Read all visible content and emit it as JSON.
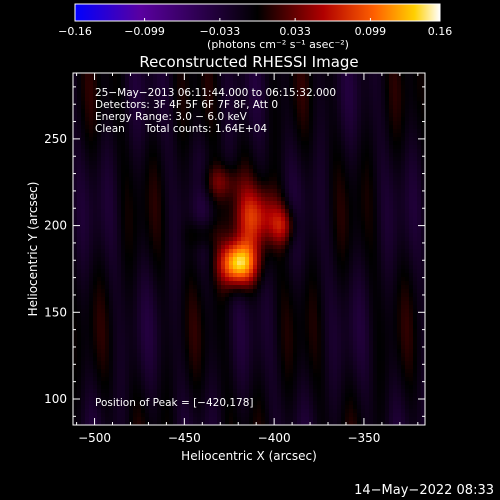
{
  "chart_data": {
    "type": "heatmap",
    "title": "Reconstructed RHESSI Image",
    "xlabel": "Heliocentric X (arcsec)",
    "ylabel": "Heliocentric Y (arcsec)",
    "xlim": [
      -512,
      -316
    ],
    "ylim": [
      85,
      288
    ],
    "xticks": [
      "−500",
      "−450",
      "−400",
      "−350"
    ],
    "xtick_values": [
      -500,
      -450,
      -400,
      -350
    ],
    "yticks": [
      "100",
      "150",
      "200",
      "250"
    ],
    "ytick_values": [
      100,
      150,
      200,
      250
    ],
    "colorbar": {
      "min": -0.16,
      "max": 0.16,
      "ticks": [
        "−0.16",
        "−0.099",
        "−0.033",
        "0.033",
        "0.099",
        "0.16"
      ],
      "tick_values": [
        -0.16,
        -0.099,
        -0.033,
        0.033,
        0.099,
        0.16
      ],
      "unit_label": "(photons cm⁻² s⁻¹ asec⁻²)",
      "colors": [
        "#0000ff",
        "#5a00a0",
        "#000000",
        "#b00000",
        "#ff6000",
        "#ffd000",
        "#ffffff"
      ]
    },
    "annotations": {
      "line1": "25−May−2013 06:11:44.000 to 06:15:32.000",
      "line2": "Detectors: 3F 4F 5F 6F 7F 8F, Att 0",
      "line3": "Energy Range: 3.0 − 6.0 keV",
      "line4_left": "Clean",
      "line4_right": "Total counts: 1.64E+04",
      "peak": "Position of Peak = [−420,178]"
    },
    "peak": {
      "x": -420,
      "y": 178,
      "value": 0.16
    },
    "sources": [
      {
        "x": -420,
        "y": 178,
        "amp": 0.16,
        "sx": 7,
        "sy": 9
      },
      {
        "x": -410,
        "y": 205,
        "amp": 0.075,
        "sx": 9,
        "sy": 12
      },
      {
        "x": -395,
        "y": 200,
        "amp": 0.06,
        "sx": 5,
        "sy": 8
      },
      {
        "x": -430,
        "y": 225,
        "amp": 0.045,
        "sx": 7,
        "sy": 7
      },
      {
        "x": -440,
        "y": 195,
        "amp": 0.03,
        "sx": 6,
        "sy": 6
      }
    ]
  },
  "footer": {
    "timestamp": "14−May−2022 08:33"
  }
}
